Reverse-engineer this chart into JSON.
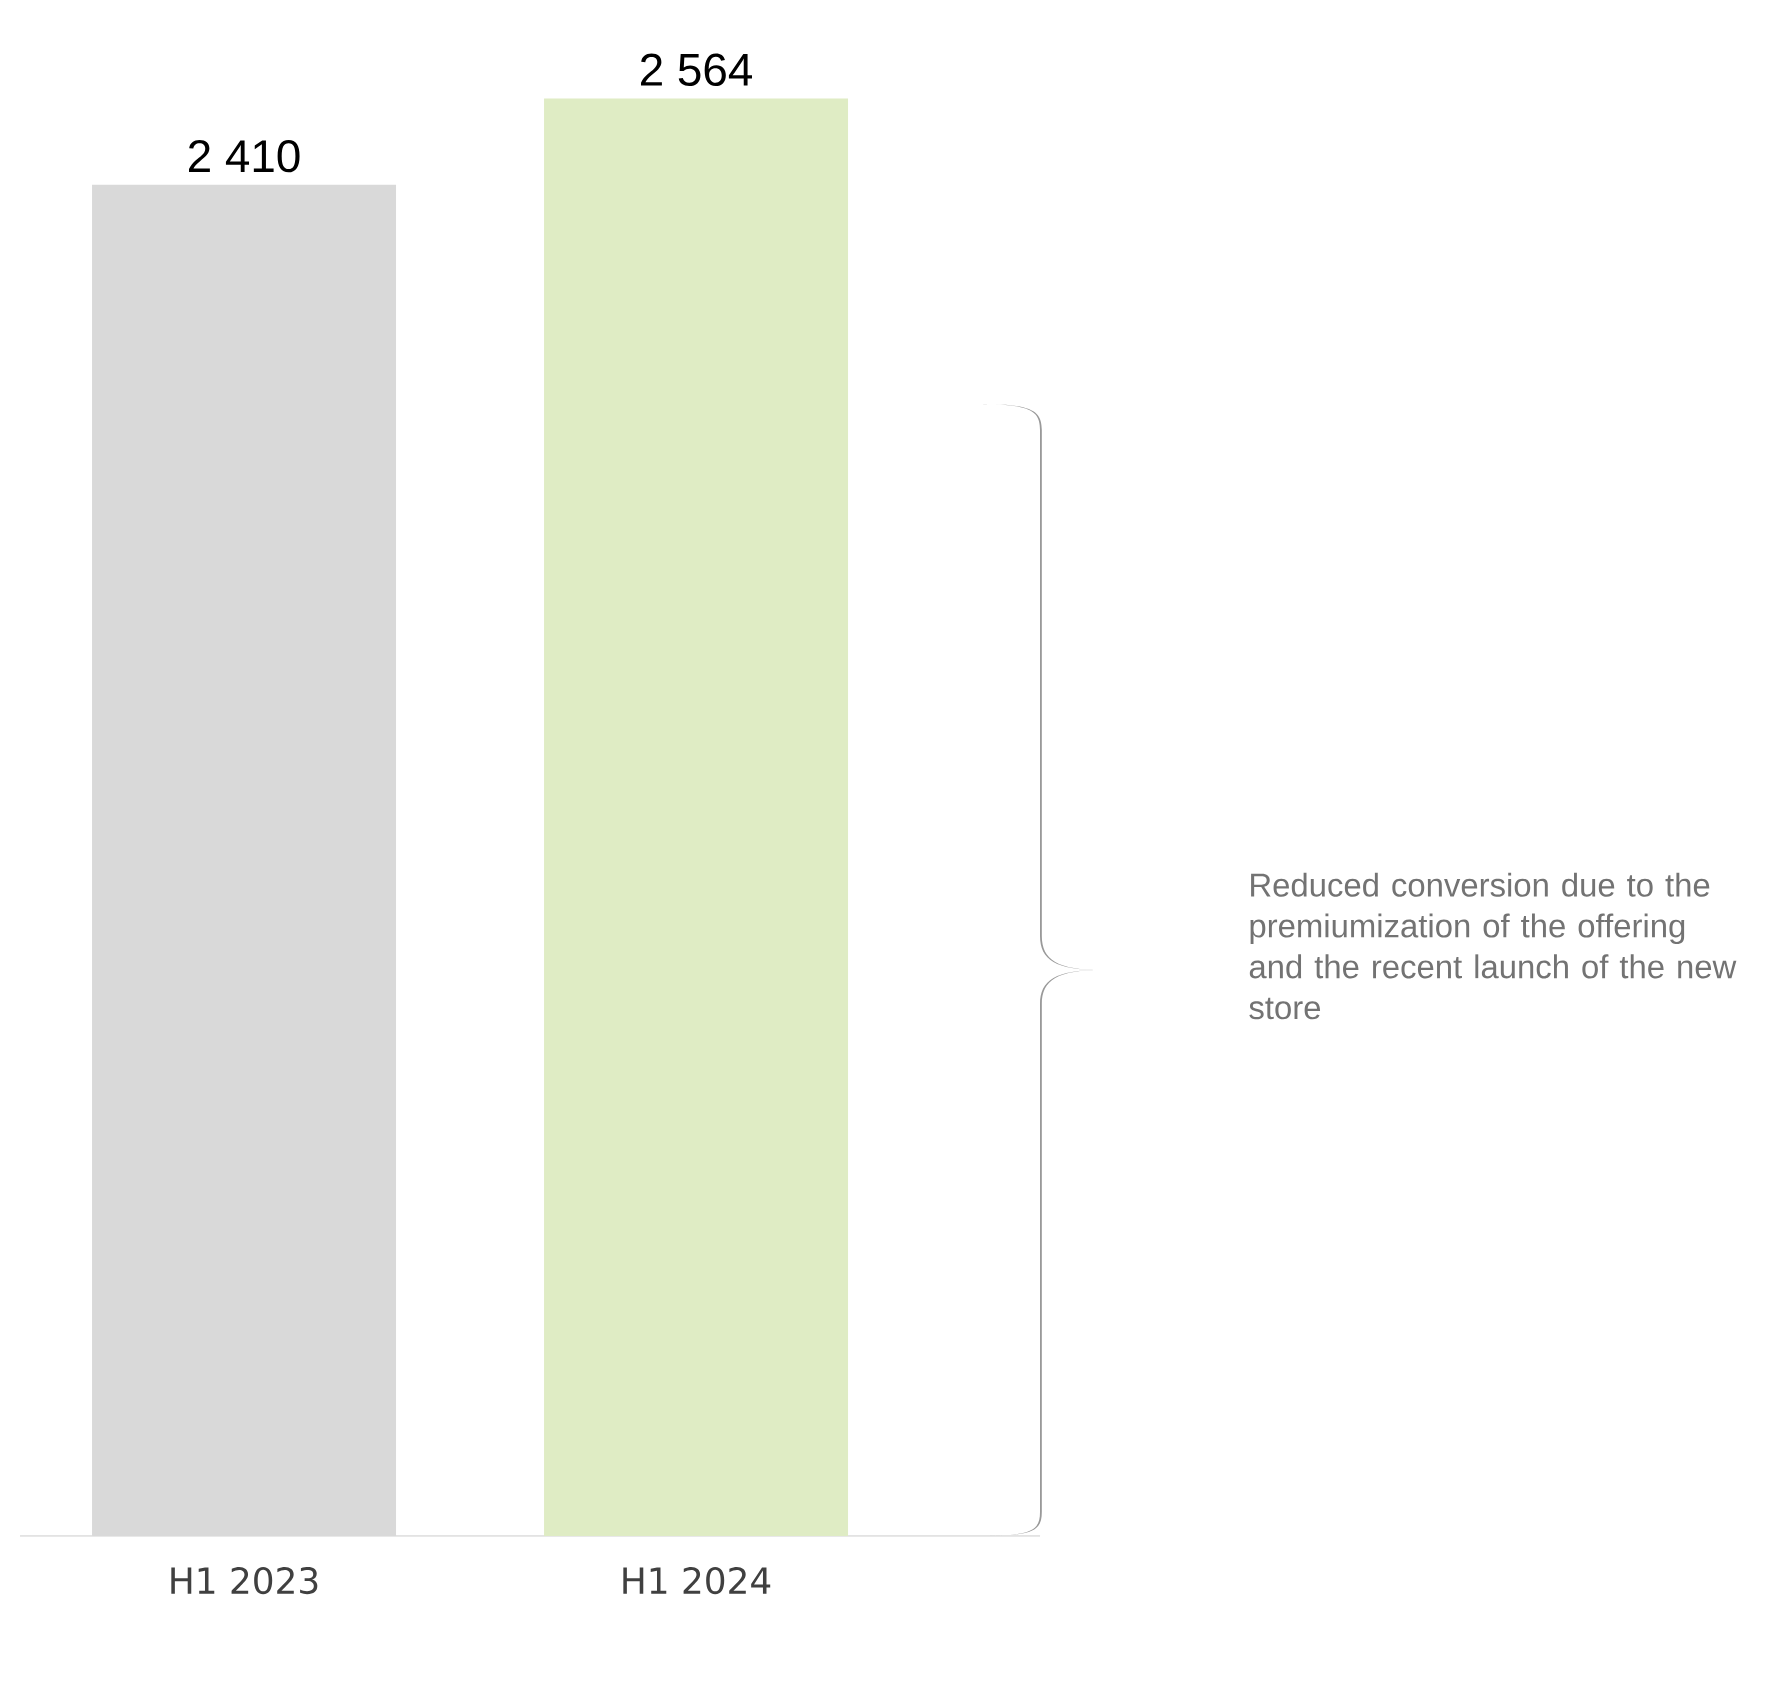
{
  "chart_data": {
    "type": "bar",
    "categories": [
      "H1 2023",
      "H1 2024"
    ],
    "values": [
      2410,
      2564
    ],
    "colors": [
      "#d9d9d9",
      "#dfecc4"
    ],
    "value_labels": [
      "2 410",
      "2 564"
    ],
    "annotations": [
      "Reduced conversion due to the premiumization of the offering and the recent launch of the new store"
    ]
  }
}
